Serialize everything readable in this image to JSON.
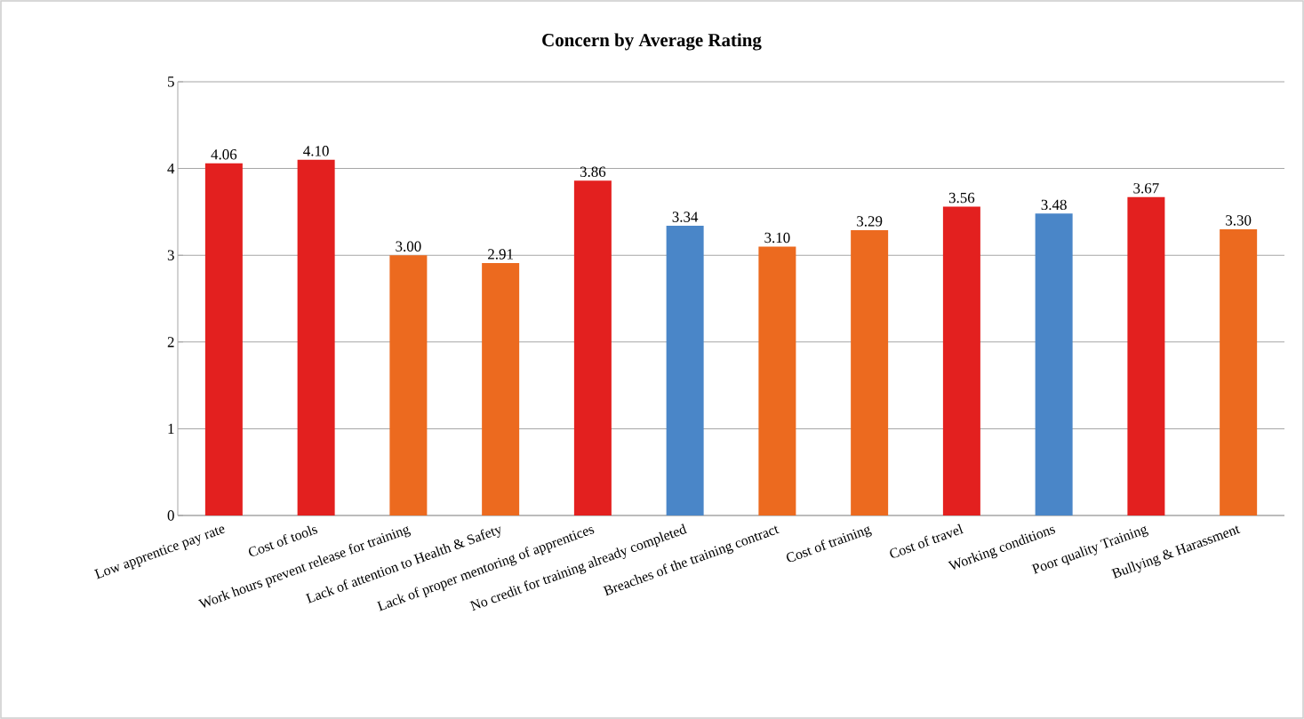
{
  "chart_data": {
    "type": "bar",
    "title": "Concern by Average Rating",
    "categories": [
      "Low apprentice pay rate",
      "Cost of tools",
      "Work hours prevent release for training",
      "Lack of attention to Health & Safety",
      "Lack of proper mentoring of apprentices",
      "No credit for training already completed",
      "Breaches of the training contract",
      "Cost of training",
      "Cost of travel",
      "Working conditions",
      "Poor quality Training",
      "Bullying & Harassment"
    ],
    "values": [
      4.06,
      4.1,
      3.0,
      2.91,
      3.86,
      3.34,
      3.1,
      3.29,
      3.56,
      3.48,
      3.67,
      3.3
    ],
    "value_labels": [
      "4.06",
      "4.10",
      "3.00",
      "2.91",
      "3.86",
      "3.34",
      "3.10",
      "3.29",
      "3.56",
      "3.48",
      "3.67",
      "3.30"
    ],
    "colors": [
      "#e3201f",
      "#e3201f",
      "#ec6a1f",
      "#ec6a1f",
      "#e3201f",
      "#4a86c8",
      "#ec6a1f",
      "#ec6a1f",
      "#e3201f",
      "#4a86c8",
      "#e3201f",
      "#ec6a1f"
    ],
    "ylim": [
      0,
      5
    ],
    "yticks": [
      0,
      1,
      2,
      3,
      4,
      5
    ],
    "grid": "y"
  }
}
